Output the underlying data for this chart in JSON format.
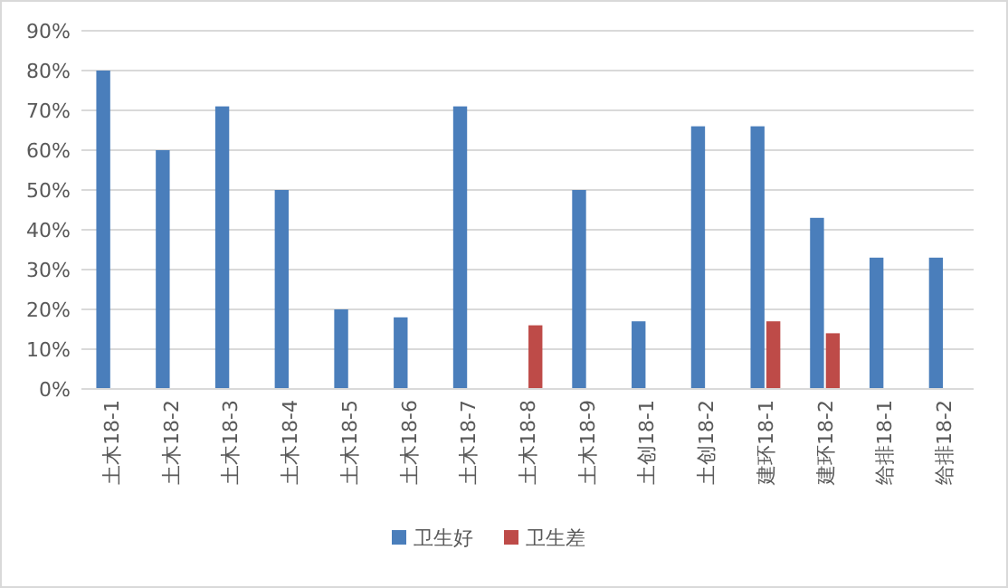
{
  "chart_data": {
    "type": "bar",
    "categories": [
      "土木18-1",
      "土木18-2",
      "土木18-3",
      "土木18-4",
      "土木18-5",
      "土木18-6",
      "土木18-7",
      "土木18-8",
      "土木18-9",
      "土创18-1",
      "土创18-2",
      "建环18-1",
      "建环18-2",
      "给排18-1",
      "给排18-2"
    ],
    "series": [
      {
        "name": "卫生好",
        "color": "#4a7ebb",
        "values": [
          80,
          60,
          71,
          50,
          20,
          18,
          71,
          null,
          50,
          17,
          66,
          66,
          43,
          33,
          33
        ]
      },
      {
        "name": "卫生差",
        "color": "#be4b48",
        "values": [
          null,
          null,
          null,
          null,
          null,
          null,
          null,
          16,
          null,
          null,
          null,
          17,
          14,
          null,
          null
        ]
      }
    ],
    "ylim": [
      0,
      90
    ],
    "yticks": [
      {
        "value": 0,
        "label": "0%"
      },
      {
        "value": 10,
        "label": "10%"
      },
      {
        "value": 20,
        "label": "20%"
      },
      {
        "value": 30,
        "label": "30%"
      },
      {
        "value": 40,
        "label": "40%"
      },
      {
        "value": 50,
        "label": "50%"
      },
      {
        "value": 60,
        "label": "60%"
      },
      {
        "value": 70,
        "label": "70%"
      },
      {
        "value": 80,
        "label": "80%"
      },
      {
        "value": 90,
        "label": "90%"
      }
    ],
    "grid": "y",
    "legend": "bottom"
  }
}
